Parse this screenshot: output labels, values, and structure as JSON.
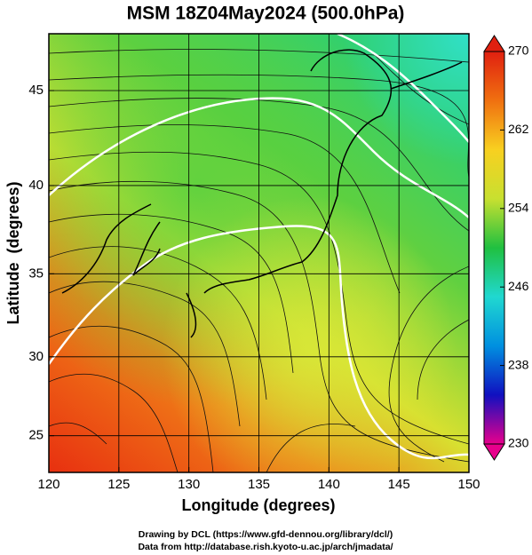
{
  "chart_data": {
    "type": "map",
    "title": "MSM 18Z04May2024 (500.0hPa)",
    "x_label": "Longitude (degrees)",
    "y_label": "Latitude  (degrees)",
    "xlim": [
      120,
      150
    ],
    "ylim": [
      22.6,
      47.8
    ],
    "xticks": [
      120,
      125,
      130,
      135,
      140,
      145,
      150
    ],
    "yticks": [
      25,
      30,
      35,
      40,
      45
    ],
    "projection": "mercator",
    "grid": true,
    "colorbar": {
      "lim": [
        230,
        270
      ],
      "ticks": [
        270,
        262,
        254,
        246,
        238,
        230
      ],
      "colors": [
        "#e8008c",
        "#1010c0",
        "#0090e0",
        "#20d8d0",
        "#20c040",
        "#c8e030",
        "#f8d020",
        "#f07010",
        "#e02010"
      ]
    },
    "credits": [
      "Drawing by DCL (https://www.gfd-dennou.org/library/dcl/)",
      "Data from http://database.rish.kyoto-u.ac.jp/arch/jmadata/"
    ]
  }
}
